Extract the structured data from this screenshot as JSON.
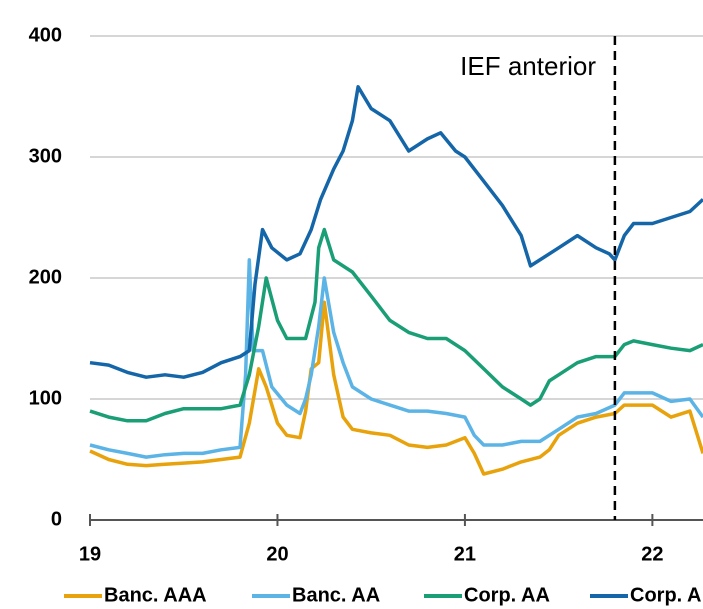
{
  "chart_data": {
    "type": "line",
    "annotation": "IEF anterior",
    "vline": 21.8,
    "xlim": [
      19,
      22.27
    ],
    "xticks": [
      19,
      20,
      21,
      22
    ],
    "ylim": [
      0,
      400
    ],
    "yticks": [
      0,
      100,
      200,
      300,
      400
    ],
    "grid": true,
    "series": [
      {
        "name": "Banc. AAA",
        "color": "#e8a20c",
        "x": [
          19.0,
          19.1,
          19.2,
          19.3,
          19.4,
          19.5,
          19.6,
          19.7,
          19.8,
          19.85,
          19.9,
          19.94,
          20.0,
          20.05,
          20.12,
          20.15,
          20.18,
          20.22,
          20.25,
          20.3,
          20.35,
          20.4,
          20.5,
          20.6,
          20.7,
          20.8,
          20.9,
          21.0,
          21.05,
          21.1,
          21.2,
          21.3,
          21.4,
          21.45,
          21.5,
          21.6,
          21.7,
          21.8,
          21.85,
          22.0,
          22.1,
          22.2,
          22.27
        ],
        "values": [
          57,
          50,
          46,
          45,
          46,
          47,
          48,
          50,
          52,
          80,
          125,
          110,
          80,
          70,
          68,
          90,
          125,
          130,
          180,
          120,
          85,
          75,
          72,
          70,
          62,
          60,
          62,
          68,
          55,
          38,
          42,
          48,
          52,
          58,
          70,
          80,
          85,
          88,
          95,
          95,
          85,
          90,
          55
        ]
      },
      {
        "name": "Banc. AA",
        "color": "#5bb4e5",
        "x": [
          19.0,
          19.1,
          19.2,
          19.3,
          19.4,
          19.5,
          19.6,
          19.7,
          19.8,
          19.83,
          19.85,
          19.87,
          19.92,
          19.97,
          20.05,
          20.12,
          20.15,
          20.18,
          20.22,
          20.25,
          20.3,
          20.35,
          20.4,
          20.5,
          20.6,
          20.7,
          20.8,
          20.9,
          21.0,
          21.05,
          21.1,
          21.2,
          21.3,
          21.4,
          21.5,
          21.6,
          21.7,
          21.8,
          21.85,
          22.0,
          22.1,
          22.2,
          22.27
        ],
        "values": [
          62,
          58,
          55,
          52,
          54,
          55,
          55,
          58,
          60,
          120,
          215,
          140,
          140,
          110,
          95,
          88,
          100,
          120,
          160,
          200,
          155,
          130,
          110,
          100,
          95,
          90,
          90,
          88,
          85,
          70,
          62,
          62,
          65,
          65,
          75,
          85,
          88,
          95,
          105,
          105,
          98,
          100,
          85
        ]
      },
      {
        "name": "Corp. AA",
        "color": "#1a9e76",
        "x": [
          19.0,
          19.1,
          19.2,
          19.3,
          19.4,
          19.5,
          19.6,
          19.7,
          19.8,
          19.85,
          19.9,
          19.94,
          20.0,
          20.05,
          20.15,
          20.2,
          20.22,
          20.25,
          20.3,
          20.4,
          20.5,
          20.6,
          20.7,
          20.8,
          20.9,
          21.0,
          21.1,
          21.2,
          21.3,
          21.35,
          21.4,
          21.45,
          21.5,
          21.6,
          21.7,
          21.8,
          21.85,
          21.9,
          22.0,
          22.1,
          22.2,
          22.27
        ],
        "values": [
          90,
          85,
          82,
          82,
          88,
          92,
          92,
          92,
          95,
          120,
          160,
          200,
          165,
          150,
          150,
          180,
          225,
          240,
          215,
          205,
          185,
          165,
          155,
          150,
          150,
          140,
          125,
          110,
          100,
          95,
          100,
          115,
          120,
          130,
          135,
          135,
          145,
          148,
          145,
          142,
          140,
          145
        ]
      },
      {
        "name": "Corp. A",
        "color": "#1466a8",
        "x": [
          19.0,
          19.1,
          19.2,
          19.3,
          19.4,
          19.5,
          19.6,
          19.7,
          19.8,
          19.85,
          19.88,
          19.92,
          19.97,
          20.05,
          20.12,
          20.18,
          20.23,
          20.3,
          20.35,
          20.4,
          20.43,
          20.5,
          20.6,
          20.7,
          20.8,
          20.87,
          20.95,
          21.0,
          21.1,
          21.2,
          21.3,
          21.35,
          21.4,
          21.5,
          21.6,
          21.7,
          21.77,
          21.8,
          21.85,
          21.9,
          22.0,
          22.1,
          22.2,
          22.27
        ],
        "values": [
          130,
          128,
          122,
          118,
          120,
          118,
          122,
          130,
          135,
          140,
          195,
          240,
          225,
          215,
          220,
          240,
          265,
          290,
          305,
          330,
          358,
          340,
          330,
          305,
          315,
          320,
          305,
          300,
          280,
          260,
          235,
          210,
          215,
          225,
          235,
          225,
          220,
          215,
          235,
          245,
          245,
          250,
          255,
          265
        ]
      }
    ]
  }
}
